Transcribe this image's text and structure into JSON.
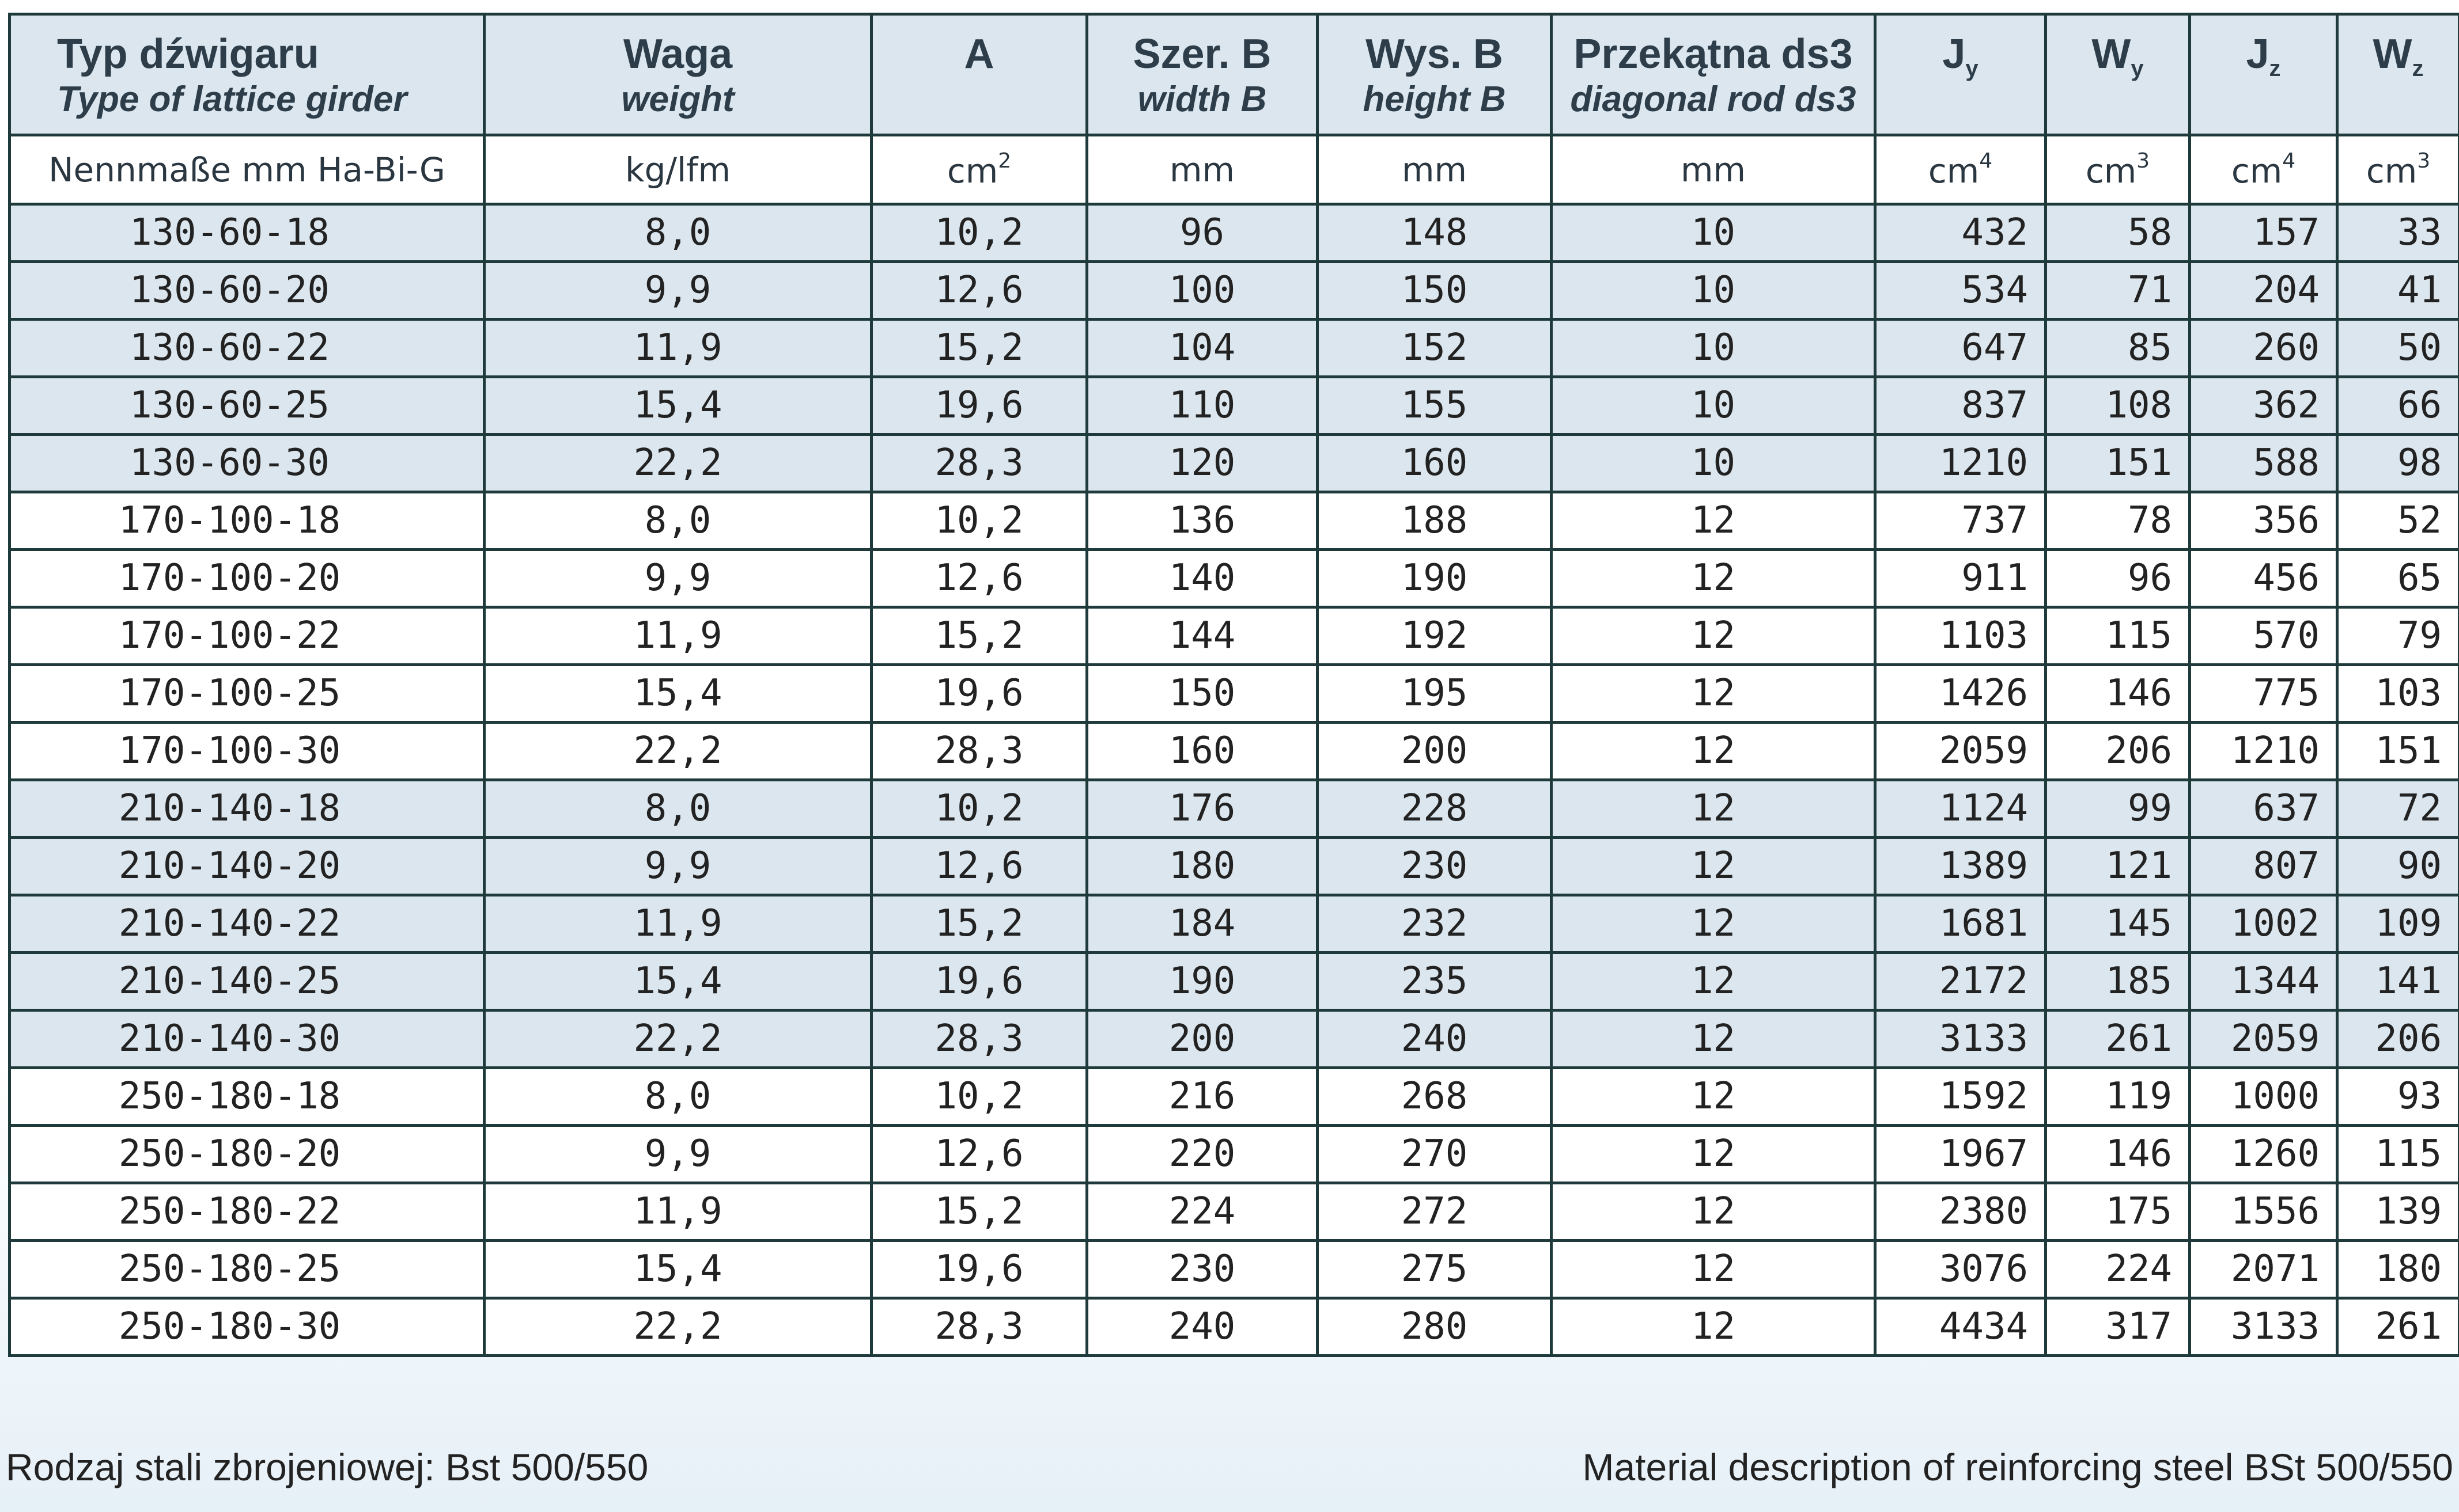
{
  "header": {
    "col0": {
      "main": "Typ dźwigaru",
      "sub": "Type of lattice girder",
      "unit": "Nennmaße mm Ha-Bi-G"
    },
    "col1": {
      "main": "Waga",
      "sub": "weight",
      "unit": "kg/lfm"
    },
    "col2": {
      "main": "A",
      "sub": "",
      "unit_base": "cm",
      "unit_sup": "2"
    },
    "col3": {
      "main": "Szer. B",
      "sub": "width B",
      "unit": "mm"
    },
    "col4": {
      "main": "Wys. B",
      "sub": "height B",
      "unit": "mm"
    },
    "col5": {
      "main": "Przekątna ds3",
      "sub": "diagonal rod ds3",
      "unit": "mm"
    },
    "col6": {
      "main": "J",
      "main_sub": "y",
      "unit_base": "cm",
      "unit_sup": "4"
    },
    "col7": {
      "main": "W",
      "main_sub": "y",
      "unit_base": "cm",
      "unit_sup": "3"
    },
    "col8": {
      "main": "J",
      "main_sub": "z",
      "unit_base": "cm",
      "unit_sup": "4"
    },
    "col9": {
      "main": "W",
      "main_sub": "z",
      "unit_base": "cm",
      "unit_sup": "3"
    }
  },
  "rows": [
    [
      "130-60-18",
      "8,0",
      "10,2",
      "96",
      "148",
      "10",
      "432",
      "58",
      "157",
      "33"
    ],
    [
      "130-60-20",
      "9,9",
      "12,6",
      "100",
      "150",
      "10",
      "534",
      "71",
      "204",
      "41"
    ],
    [
      "130-60-22",
      "11,9",
      "15,2",
      "104",
      "152",
      "10",
      "647",
      "85",
      "260",
      "50"
    ],
    [
      "130-60-25",
      "15,4",
      "19,6",
      "110",
      "155",
      "10",
      "837",
      "108",
      "362",
      "66"
    ],
    [
      "130-60-30",
      "22,2",
      "28,3",
      "120",
      "160",
      "10",
      "1210",
      "151",
      "588",
      "98"
    ],
    [
      "170-100-18",
      "8,0",
      "10,2",
      "136",
      "188",
      "12",
      "737",
      "78",
      "356",
      "52"
    ],
    [
      "170-100-20",
      "9,9",
      "12,6",
      "140",
      "190",
      "12",
      "911",
      "96",
      "456",
      "65"
    ],
    [
      "170-100-22",
      "11,9",
      "15,2",
      "144",
      "192",
      "12",
      "1103",
      "115",
      "570",
      "79"
    ],
    [
      "170-100-25",
      "15,4",
      "19,6",
      "150",
      "195",
      "12",
      "1426",
      "146",
      "775",
      "103"
    ],
    [
      "170-100-30",
      "22,2",
      "28,3",
      "160",
      "200",
      "12",
      "2059",
      "206",
      "1210",
      "151"
    ],
    [
      "210-140-18",
      "8,0",
      "10,2",
      "176",
      "228",
      "12",
      "1124",
      "99",
      "637",
      "72"
    ],
    [
      "210-140-20",
      "9,9",
      "12,6",
      "180",
      "230",
      "12",
      "1389",
      "121",
      "807",
      "90"
    ],
    [
      "210-140-22",
      "11,9",
      "15,2",
      "184",
      "232",
      "12",
      "1681",
      "145",
      "1002",
      "109"
    ],
    [
      "210-140-25",
      "15,4",
      "19,6",
      "190",
      "235",
      "12",
      "2172",
      "185",
      "1344",
      "141"
    ],
    [
      "210-140-30",
      "22,2",
      "28,3",
      "200",
      "240",
      "12",
      "3133",
      "261",
      "2059",
      "206"
    ],
    [
      "250-180-18",
      "8,0",
      "10,2",
      "216",
      "268",
      "12",
      "1592",
      "119",
      "1000",
      "93"
    ],
    [
      "250-180-20",
      "9,9",
      "12,6",
      "220",
      "270",
      "12",
      "1967",
      "146",
      "1260",
      "115"
    ],
    [
      "250-180-22",
      "11,9",
      "15,2",
      "224",
      "272",
      "12",
      "2380",
      "175",
      "1556",
      "139"
    ],
    [
      "250-180-25",
      "15,4",
      "19,6",
      "230",
      "275",
      "12",
      "3076",
      "224",
      "2071",
      "180"
    ],
    [
      "250-180-30",
      "22,2",
      "28,3",
      "240",
      "280",
      "12",
      "4434",
      "317",
      "3133",
      "261"
    ]
  ],
  "row_shading": [
    "shade",
    "shade",
    "shade",
    "shade",
    "shade",
    "plain",
    "plain",
    "plain",
    "plain",
    "plain",
    "shade",
    "shade",
    "shade",
    "shade",
    "shade",
    "plain",
    "plain",
    "plain",
    "plain",
    "plain"
  ],
  "footer": {
    "left": "Rodzaj stali zbrojeniowej: Bst 500/550",
    "right": "Material description of reinforcing steel BSt 500/550"
  },
  "colors": {
    "shade": "#dbe6ee",
    "border": "#1f3a3a"
  }
}
